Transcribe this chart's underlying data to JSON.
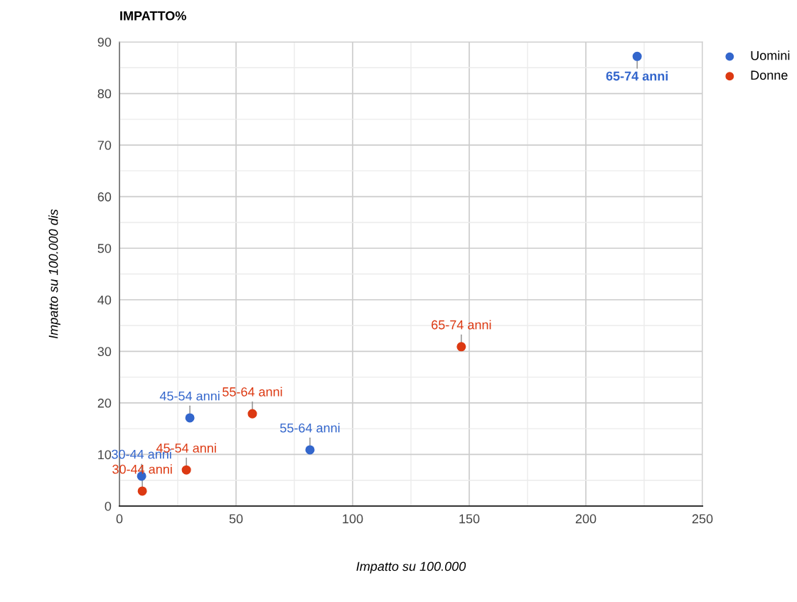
{
  "chart_data": {
    "type": "scatter",
    "title": "IMPATTO%",
    "xlabel": "Impatto su 100.000",
    "ylabel": "Impatto su 100.000 dis",
    "xlim": [
      0,
      250
    ],
    "xticks": [
      0,
      50,
      100,
      150,
      200,
      250
    ],
    "ylim": [
      0,
      90
    ],
    "yticks": [
      0,
      10,
      20,
      30,
      40,
      50,
      60,
      70,
      80,
      90
    ],
    "grid": true,
    "legend": "top right",
    "marker": "circle",
    "series": [
      {
        "name": "Uomini",
        "color": "#3366cc",
        "x": [
          9.5,
          30.2,
          81.7,
          222
        ],
        "values": [
          5.8,
          17.1,
          10.9,
          87.2
        ],
        "value_labels": [
          "30-44 anni",
          "45-54 anni",
          "55-64 anni",
          "65-74 anni"
        ]
      },
      {
        "name": "Donne",
        "color": "#dc3912",
        "x": [
          9.8,
          28.7,
          57,
          146.6
        ],
        "values": [
          2.9,
          7.0,
          17.9,
          30.9
        ],
        "value_labels": [
          "30-44 anni",
          "45-54 anni",
          "55-64 anni",
          "65-74 anni"
        ]
      }
    ]
  }
}
